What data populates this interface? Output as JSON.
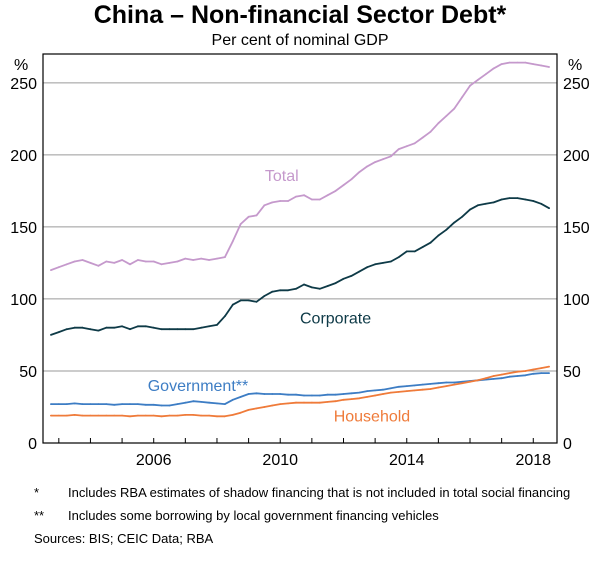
{
  "title": "China – Non-financial Sector Debt*",
  "subtitle": "Per cent of nominal GDP",
  "footnotes": [
    {
      "mark": "*",
      "text": "Includes RBA estimates of shadow financing that is not included in total social financing"
    },
    {
      "mark": "**",
      "text": "Includes some borrowing by local government financing vehicles"
    }
  ],
  "sources": "Sources: BIS; CEIC Data; RBA",
  "chart_data": {
    "type": "line",
    "title": "China – Non-financial Sector Debt*",
    "subtitle": "Per cent of nominal GDP",
    "xlabel": "",
    "ylabel": "%",
    "ylabel_right": "%",
    "xlim": [
      2002.5,
      2018.75
    ],
    "ylim": [
      0,
      270
    ],
    "yticks": [
      0,
      50,
      100,
      150,
      200,
      250
    ],
    "xticks": [
      2006,
      2010,
      2014,
      2018
    ],
    "grid": true,
    "legend": "inline labels",
    "colors": {
      "total": "#c599cc",
      "corporate": "#0e3a47",
      "government": "#3d7dc4",
      "household": "#ef7b3a"
    },
    "series": [
      {
        "name": "Total",
        "key": "total",
        "x": [
          2002.75,
          2003.0,
          2003.25,
          2003.5,
          2003.75,
          2004.0,
          2004.25,
          2004.5,
          2004.75,
          2005.0,
          2005.25,
          2005.5,
          2005.75,
          2006.0,
          2006.25,
          2006.5,
          2006.75,
          2007.0,
          2007.25,
          2007.5,
          2007.75,
          2008.0,
          2008.25,
          2008.5,
          2008.75,
          2009.0,
          2009.25,
          2009.5,
          2009.75,
          2010.0,
          2010.25,
          2010.5,
          2010.75,
          2011.0,
          2011.25,
          2011.5,
          2011.75,
          2012.0,
          2012.25,
          2012.5,
          2012.75,
          2013.0,
          2013.25,
          2013.5,
          2013.75,
          2014.0,
          2014.25,
          2014.5,
          2014.75,
          2015.0,
          2015.25,
          2015.5,
          2015.75,
          2016.0,
          2016.25,
          2016.5,
          2016.75,
          2017.0,
          2017.25,
          2017.5,
          2017.75,
          2018.0,
          2018.25,
          2018.5
        ],
        "values": [
          120,
          122,
          124,
          126,
          127,
          125,
          123,
          126,
          125,
          127,
          124,
          127,
          126,
          126,
          124,
          125,
          126,
          128,
          127,
          128,
          127,
          128,
          129,
          140,
          152,
          157,
          158,
          165,
          167,
          168,
          168,
          171,
          172,
          169,
          169,
          172,
          175,
          179,
          183,
          188,
          192,
          195,
          197,
          199,
          204,
          206,
          208,
          212,
          216,
          222,
          227,
          232,
          240,
          248,
          252,
          256,
          260,
          263,
          264,
          264,
          264,
          263,
          262,
          261
        ]
      },
      {
        "name": "Corporate",
        "key": "corporate",
        "x": [
          2002.75,
          2003.0,
          2003.25,
          2003.5,
          2003.75,
          2004.0,
          2004.25,
          2004.5,
          2004.75,
          2005.0,
          2005.25,
          2005.5,
          2005.75,
          2006.0,
          2006.25,
          2006.5,
          2006.75,
          2007.0,
          2007.25,
          2007.5,
          2007.75,
          2008.0,
          2008.25,
          2008.5,
          2008.75,
          2009.0,
          2009.25,
          2009.5,
          2009.75,
          2010.0,
          2010.25,
          2010.5,
          2010.75,
          2011.0,
          2011.25,
          2011.5,
          2011.75,
          2012.0,
          2012.25,
          2012.5,
          2012.75,
          2013.0,
          2013.25,
          2013.5,
          2013.75,
          2014.0,
          2014.25,
          2014.5,
          2014.75,
          2015.0,
          2015.25,
          2015.5,
          2015.75,
          2016.0,
          2016.25,
          2016.5,
          2016.75,
          2017.0,
          2017.25,
          2017.5,
          2017.75,
          2018.0,
          2018.25,
          2018.5
        ],
        "values": [
          75,
          77,
          79,
          80,
          80,
          79,
          78,
          80,
          80,
          81,
          79,
          81,
          81,
          80,
          79,
          79,
          79,
          79,
          79,
          80,
          81,
          82,
          88,
          96,
          99,
          99,
          98,
          102,
          105,
          106,
          106,
          107,
          110,
          108,
          107,
          109,
          111,
          114,
          116,
          119,
          122,
          124,
          125,
          126,
          129,
          133,
          133,
          136,
          139,
          144,
          148,
          153,
          157,
          162,
          165,
          166,
          167,
          169,
          170,
          170,
          169,
          168,
          166,
          163
        ]
      },
      {
        "name": "Government**",
        "key": "government",
        "x": [
          2002.75,
          2003.0,
          2003.25,
          2003.5,
          2003.75,
          2004.0,
          2004.25,
          2004.5,
          2004.75,
          2005.0,
          2005.25,
          2005.5,
          2005.75,
          2006.0,
          2006.25,
          2006.5,
          2006.75,
          2007.0,
          2007.25,
          2007.5,
          2007.75,
          2008.0,
          2008.25,
          2008.5,
          2008.75,
          2009.0,
          2009.25,
          2009.5,
          2009.75,
          2010.0,
          2010.25,
          2010.5,
          2010.75,
          2011.0,
          2011.25,
          2011.5,
          2011.75,
          2012.0,
          2012.25,
          2012.5,
          2012.75,
          2013.0,
          2013.25,
          2013.5,
          2013.75,
          2014.0,
          2014.25,
          2014.5,
          2014.75,
          2015.0,
          2015.25,
          2015.5,
          2015.75,
          2016.0,
          2016.25,
          2016.5,
          2016.75,
          2017.0,
          2017.25,
          2017.5,
          2017.75,
          2018.0,
          2018.25,
          2018.5
        ],
        "values": [
          27,
          27,
          27,
          27.5,
          27,
          27,
          27,
          27,
          26.5,
          27,
          27,
          27,
          26.5,
          26.5,
          26,
          26,
          27,
          28,
          29,
          28.5,
          28,
          27.5,
          27,
          30,
          32,
          34,
          34.5,
          34,
          34,
          34,
          33.5,
          33.5,
          33,
          33,
          33,
          33.5,
          33.5,
          34,
          34.5,
          35,
          36,
          36.5,
          37,
          38,
          39,
          39.5,
          40,
          40.5,
          41,
          41.5,
          42,
          42,
          42.5,
          43,
          43.5,
          44,
          44.5,
          45,
          46,
          46.5,
          47,
          48,
          48.5,
          48.5
        ]
      },
      {
        "name": "Household",
        "key": "household",
        "x": [
          2002.75,
          2003.0,
          2003.25,
          2003.5,
          2003.75,
          2004.0,
          2004.25,
          2004.5,
          2004.75,
          2005.0,
          2005.25,
          2005.5,
          2005.75,
          2006.0,
          2006.25,
          2006.5,
          2006.75,
          2007.0,
          2007.25,
          2007.5,
          2007.75,
          2008.0,
          2008.25,
          2008.5,
          2008.75,
          2009.0,
          2009.25,
          2009.5,
          2009.75,
          2010.0,
          2010.25,
          2010.5,
          2010.75,
          2011.0,
          2011.25,
          2011.5,
          2011.75,
          2012.0,
          2012.25,
          2012.5,
          2012.75,
          2013.0,
          2013.25,
          2013.5,
          2013.75,
          2014.0,
          2014.25,
          2014.5,
          2014.75,
          2015.0,
          2015.25,
          2015.5,
          2015.75,
          2016.0,
          2016.25,
          2016.5,
          2016.75,
          2017.0,
          2017.25,
          2017.5,
          2017.75,
          2018.0,
          2018.25,
          2018.5
        ],
        "values": [
          19,
          19,
          19,
          19.5,
          19,
          19,
          19,
          19,
          19,
          19,
          18.5,
          19,
          19,
          19,
          18.5,
          19,
          19,
          19.5,
          19.5,
          19,
          19,
          18.5,
          18.5,
          19.5,
          21,
          23,
          24,
          25,
          26,
          27,
          27.5,
          28,
          28,
          28,
          28,
          28.5,
          29,
          30,
          30.5,
          31,
          32,
          33,
          34,
          35,
          35.5,
          36,
          36.5,
          37,
          37.5,
          38.5,
          39.5,
          40.5,
          41.5,
          42.5,
          43.5,
          45,
          46.5,
          47.5,
          48.5,
          49.5,
          50,
          51,
          52,
          53
        ]
      }
    ],
    "labels": [
      {
        "series": "total",
        "text": "Total",
        "x": 2010.05,
        "y": 182
      },
      {
        "series": "corporate",
        "text": "Corporate",
        "x": 2011.75,
        "y": 83
      },
      {
        "series": "government",
        "text": "Government**",
        "x": 2007.4,
        "y": 36
      },
      {
        "series": "household",
        "text": "Household",
        "x": 2012.9,
        "y": 15
      }
    ]
  }
}
